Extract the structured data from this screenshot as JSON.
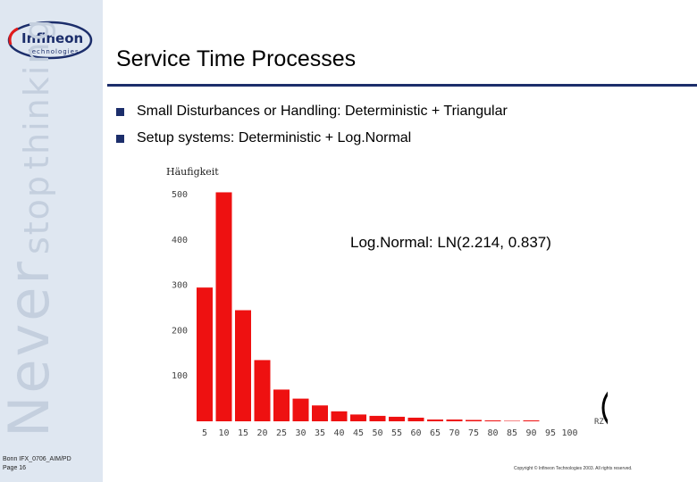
{
  "branding": {
    "logo_main": "Infineon",
    "logo_sub": "technologies",
    "slogan_never": "Never",
    "slogan_stop": "stop",
    "slogan_thinking": "thinking",
    "footer_line1": "Bonn IFX_0706_AIM/PD",
    "footer_line2": "Page 16",
    "copyright": "Copyright © Infineon Technologies 2003. All rights reserved."
  },
  "slide": {
    "title": "Service Time Processes",
    "bullets": [
      "Small Disturbances or Handling: Deterministic + Triangular",
      "Setup systems: Deterministic + Log.Normal"
    ],
    "annotation": "Log.Normal: LN(2.214, 0.837)",
    "corner_label": "RZ",
    "colors": {
      "accent": "#1c2e6b",
      "bar": "#ee1111",
      "sidebar": "#dfe7f1"
    }
  },
  "chart_data": {
    "type": "bar",
    "ylabel": "Häufigkeit",
    "categories": [
      "5",
      "10",
      "15",
      "20",
      "25",
      "30",
      "35",
      "40",
      "45",
      "50",
      "55",
      "60",
      "65",
      "70",
      "75",
      "80",
      "85",
      "90",
      "95",
      "100"
    ],
    "values": [
      295,
      505,
      245,
      135,
      70,
      50,
      35,
      22,
      15,
      12,
      10,
      8,
      4,
      4,
      3,
      2,
      1,
      2,
      0,
      0
    ],
    "ylim": [
      0,
      500
    ],
    "yticks": [
      100,
      200,
      300,
      400,
      500
    ],
    "grid": false
  }
}
